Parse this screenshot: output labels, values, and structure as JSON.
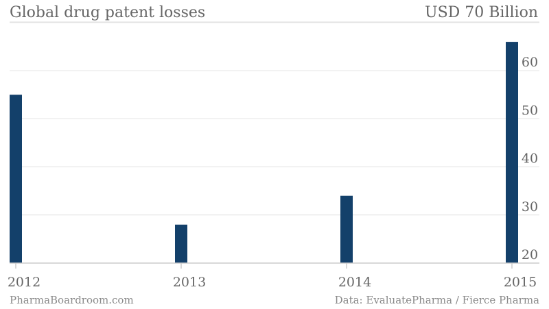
{
  "header": {
    "title": "Global drug patent losses",
    "unit": "USD 70 Billion"
  },
  "footer": {
    "source_left": "PharmaBoardroom.com",
    "source_right": "Data: EvaluatePharma / Fierce Pharma"
  },
  "colors": {
    "bar": "#13406a",
    "grid": "#e2e2e2",
    "axis": "#cccccc",
    "text": "#666666"
  },
  "chart_data": {
    "type": "bar",
    "title": "Global drug patent losses",
    "categories": [
      "2012",
      "2013",
      "2014",
      "2015"
    ],
    "values": [
      55,
      28,
      34,
      66
    ],
    "yticks": [
      20,
      30,
      40,
      50,
      60
    ],
    "ylim": [
      20,
      70
    ],
    "y_axis_position": "right",
    "grid": true
  }
}
